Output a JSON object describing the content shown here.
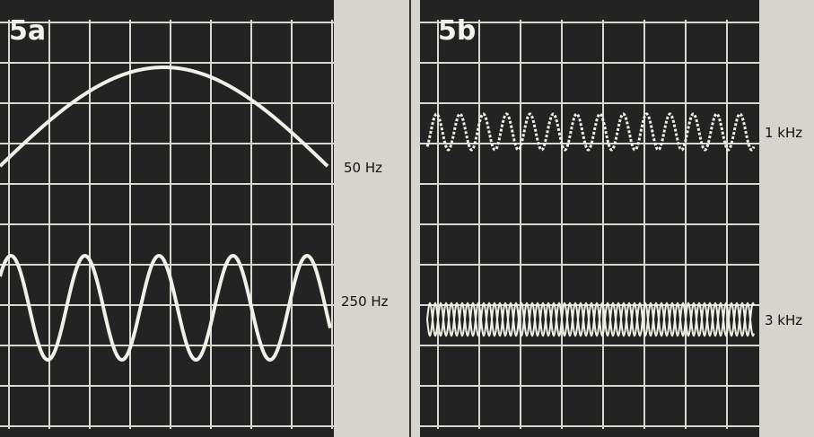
{
  "panels": [
    {
      "label": "5a",
      "traces": [
        {
          "label": "50 Hz"
        },
        {
          "label": "250 Hz"
        }
      ]
    },
    {
      "label": "5b",
      "traces": [
        {
          "label": "1 kHz"
        },
        {
          "label": "3 kHz"
        }
      ]
    }
  ]
}
